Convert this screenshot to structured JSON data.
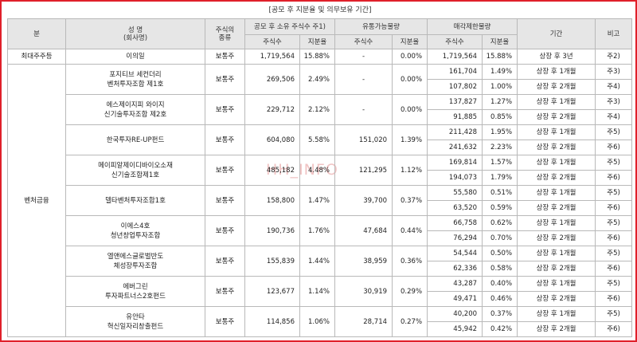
{
  "caption": "[공모 후 지분율 및 의무보유 기간]",
  "watermark": "HH_INFO",
  "headers": {
    "category": "분",
    "name_line1": "성 명",
    "name_line2": "(회사명)",
    "stock_type_line1": "주식의",
    "stock_type_line2": "종류",
    "post_ipo": "공모 후 소유 주식수 주1)",
    "tradable": "유통가능물량",
    "restricted": "매각제한물량",
    "period": "기간",
    "note": "비고",
    "shares": "주식수",
    "ratio": "지분율"
  },
  "groups": [
    {
      "category": "최대주주등",
      "entities": [
        {
          "name": [
            "이의일"
          ],
          "type": "보통주",
          "shares": "1,719,564",
          "ratio": "15.88%",
          "trade_shares": "-",
          "trade_ratio": "0.00%",
          "periods": [
            {
              "shares": "1,719,564",
              "ratio": "15.88%",
              "period": "상장 후 3년",
              "note": "주2)"
            }
          ]
        }
      ]
    },
    {
      "category": "벤처금융",
      "entities": [
        {
          "name": [
            "포지티브 세컨더리",
            "벤처투자조합 제1호"
          ],
          "type": "보통주",
          "shares": "269,506",
          "ratio": "2.49%",
          "trade_shares": "-",
          "trade_ratio": "0.00%",
          "periods": [
            {
              "shares": "161,704",
              "ratio": "1.49%",
              "period": "상장 후 1개월",
              "note": "주3)"
            },
            {
              "shares": "107,802",
              "ratio": "1.00%",
              "period": "상장 후 2개월",
              "note": "주4)"
            }
          ]
        },
        {
          "name": [
            "에스제이지피 와이지",
            "신기술투자조합 제2호"
          ],
          "type": "보통주",
          "shares": "229,712",
          "ratio": "2.12%",
          "trade_shares": "-",
          "trade_ratio": "0.00%",
          "periods": [
            {
              "shares": "137,827",
              "ratio": "1.27%",
              "period": "상장 후 1개월",
              "note": "주3)"
            },
            {
              "shares": "91,885",
              "ratio": "0.85%",
              "period": "상장 후 2개월",
              "note": "주4)"
            }
          ]
        },
        {
          "name": [
            "한국투자RE-UP펀드"
          ],
          "type": "보통주",
          "shares": "604,080",
          "ratio": "5.58%",
          "trade_shares": "151,020",
          "trade_ratio": "1.39%",
          "periods": [
            {
              "shares": "211,428",
              "ratio": "1.95%",
              "period": "상장 후 1개월",
              "note": "주5)"
            },
            {
              "shares": "241,632",
              "ratio": "2.23%",
              "period": "상장 후 2개월",
              "note": "주6)"
            }
          ]
        },
        {
          "name": [
            "메이피알제이디바이오소재",
            "신기술조합제1호"
          ],
          "type": "보통주",
          "shares": "485,182",
          "ratio": "4.48%",
          "trade_shares": "121,295",
          "trade_ratio": "1.12%",
          "periods": [
            {
              "shares": "169,814",
              "ratio": "1.57%",
              "period": "상장 후 1개월",
              "note": "주5)"
            },
            {
              "shares": "194,073",
              "ratio": "1.79%",
              "period": "상장 후 2개월",
              "note": "주6)"
            }
          ]
        },
        {
          "name": [
            "델타벤처투자조합1호"
          ],
          "type": "보통주",
          "shares": "158,800",
          "ratio": "1.47%",
          "trade_shares": "39,700",
          "trade_ratio": "0.37%",
          "periods": [
            {
              "shares": "55,580",
              "ratio": "0.51%",
              "period": "상장 후 1개월",
              "note": "주5)"
            },
            {
              "shares": "63,520",
              "ratio": "0.59%",
              "period": "상장 후 2개월",
              "note": "주6)"
            }
          ]
        },
        {
          "name": [
            "이에스4호",
            "청년창업투자조합"
          ],
          "type": "보통주",
          "shares": "190,736",
          "ratio": "1.76%",
          "trade_shares": "47,684",
          "trade_ratio": "0.44%",
          "periods": [
            {
              "shares": "66,758",
              "ratio": "0.62%",
              "period": "상장 후 1개월",
              "note": "주5)"
            },
            {
              "shares": "76,294",
              "ratio": "0.70%",
              "period": "상장 후 2개월",
              "note": "주6)"
            }
          ]
        },
        {
          "name": [
            "엘앤에스글로벌반도",
            "체성장투자조합"
          ],
          "type": "보통주",
          "shares": "155,839",
          "ratio": "1.44%",
          "trade_shares": "38,959",
          "trade_ratio": "0.36%",
          "periods": [
            {
              "shares": "54,544",
              "ratio": "0.50%",
              "period": "상장 후 1개월",
              "note": "주5)"
            },
            {
              "shares": "62,336",
              "ratio": "0.58%",
              "period": "상장 후 2개월",
              "note": "주6)"
            }
          ]
        },
        {
          "name": [
            "에버그린",
            "투자파트너스2호펀드"
          ],
          "type": "보통주",
          "shares": "123,677",
          "ratio": "1.14%",
          "trade_shares": "30,919",
          "trade_ratio": "0.29%",
          "periods": [
            {
              "shares": "43,287",
              "ratio": "0.40%",
              "period": "상장 후 1개월",
              "note": "주5)"
            },
            {
              "shares": "49,471",
              "ratio": "0.46%",
              "period": "상장 후 2개월",
              "note": "주6)"
            }
          ]
        },
        {
          "name": [
            "유안타",
            "혁신일자리창출펀드"
          ],
          "type": "보통주",
          "shares": "114,856",
          "ratio": "1.06%",
          "trade_shares": "28,714",
          "trade_ratio": "0.27%",
          "periods": [
            {
              "shares": "40,200",
              "ratio": "0.37%",
              "period": "상장 후 1개월",
              "note": "주5)"
            },
            {
              "shares": "45,942",
              "ratio": "0.42%",
              "period": "상장 후 2개월",
              "note": "주6)"
            }
          ]
        }
      ]
    }
  ]
}
